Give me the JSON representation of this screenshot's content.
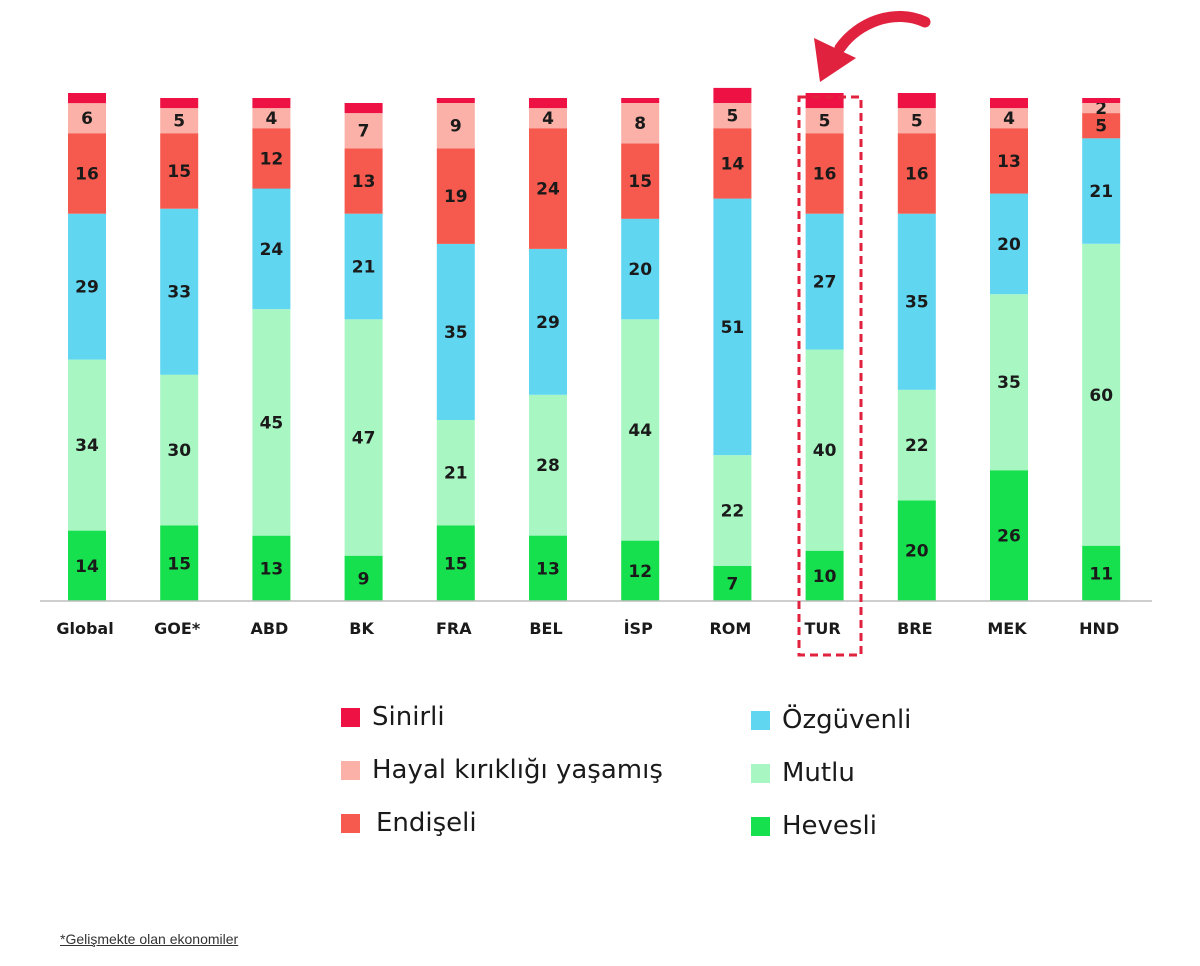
{
  "colors": {
    "Sinirli": "#ee1144",
    "Hayal kırıklığı yaşamış": "#fbb1a8",
    "Endişeli": "#f65a4e",
    "Özgüvenli": "#60d6f1",
    "Mutlu": "#a8f7c3",
    "Hevesli": "#16e04e",
    "highlight": "#e0223e",
    "axis": "#bdbdbd"
  },
  "chart_data": {
    "type": "bar",
    "stacked": true,
    "orientation": "vertical",
    "categories": [
      "Global",
      "GOE*",
      "ABD",
      "BK",
      "FRA",
      "BEL",
      "İSP",
      "ROM",
      "TUR",
      "BRE",
      "MEK",
      "HND"
    ],
    "series": [
      {
        "name": "Hevesli",
        "values": [
          14,
          15,
          13,
          9,
          15,
          13,
          12,
          7,
          10,
          20,
          26,
          11
        ]
      },
      {
        "name": "Mutlu",
        "values": [
          34,
          30,
          45,
          47,
          21,
          28,
          44,
          22,
          40,
          22,
          35,
          60
        ]
      },
      {
        "name": "Özgüvenli",
        "values": [
          29,
          33,
          24,
          21,
          35,
          29,
          20,
          51,
          27,
          35,
          20,
          21
        ]
      },
      {
        "name": "Endişeli",
        "values": [
          16,
          15,
          12,
          13,
          19,
          24,
          15,
          14,
          16,
          16,
          13,
          5
        ]
      },
      {
        "name": "Hayal kırıklığı yaşamış",
        "values": [
          6,
          5,
          4,
          7,
          9,
          4,
          8,
          5,
          5,
          5,
          4,
          2
        ]
      },
      {
        "name": "Sinirli",
        "values": [
          2,
          2,
          2,
          2,
          1,
          2,
          1,
          3,
          3,
          3,
          2,
          1
        ]
      }
    ],
    "unlabeled_series": [
      "Sinirli"
    ],
    "highlighted_category": "TUR",
    "ylim": [
      0,
      100
    ],
    "grid": false,
    "legend_position": "bottom"
  },
  "legend": {
    "left": [
      "Sinirli",
      "Hayal kırıklığı yaşamış",
      "Endişeli"
    ],
    "right": [
      "Özgüvenli",
      "Mutlu",
      "Hevesli"
    ]
  },
  "footnote": "*Gelişmekte olan ekonomiler"
}
